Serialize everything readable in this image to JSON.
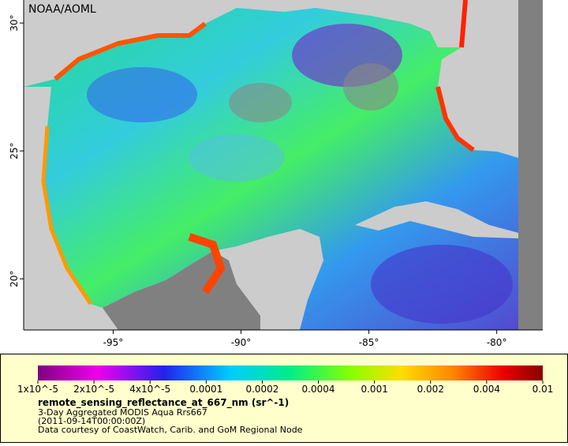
{
  "map": {
    "credit": "NOAA/AOML",
    "xlim": [
      -98.5,
      -78.2
    ],
    "ylim": [
      18,
      30.9
    ],
    "xticks": [
      {
        "value": -95,
        "label": "-95°"
      },
      {
        "value": -90,
        "label": "-90°"
      },
      {
        "value": -85,
        "label": "-85°"
      },
      {
        "value": -80,
        "label": "-80°"
      }
    ],
    "yticks": [
      {
        "value": 30,
        "label": "30°"
      },
      {
        "value": 25,
        "label": "25°"
      },
      {
        "value": 20,
        "label": "20°"
      }
    ]
  },
  "legend": {
    "colorbar_ticks": [
      {
        "value": 1e-05,
        "label": "1x10^-5"
      },
      {
        "value": 2e-05,
        "label": "2x10^-5"
      },
      {
        "value": 4e-05,
        "label": "4x10^-5"
      },
      0.0001,
      0.0002,
      0.0004,
      0.001,
      0.002,
      0.004,
      0.01
    ],
    "variable": "remote_sensing_reflectance_at_667_nm (sr^-1)",
    "lines": [
      "3-Day Aggregated MODIS Aqua Rrs667",
      "(2011-09-14T00:00:00Z)",
      "Data courtesy of CoastWatch, Carib. and GoM Regional Node"
    ]
  }
}
